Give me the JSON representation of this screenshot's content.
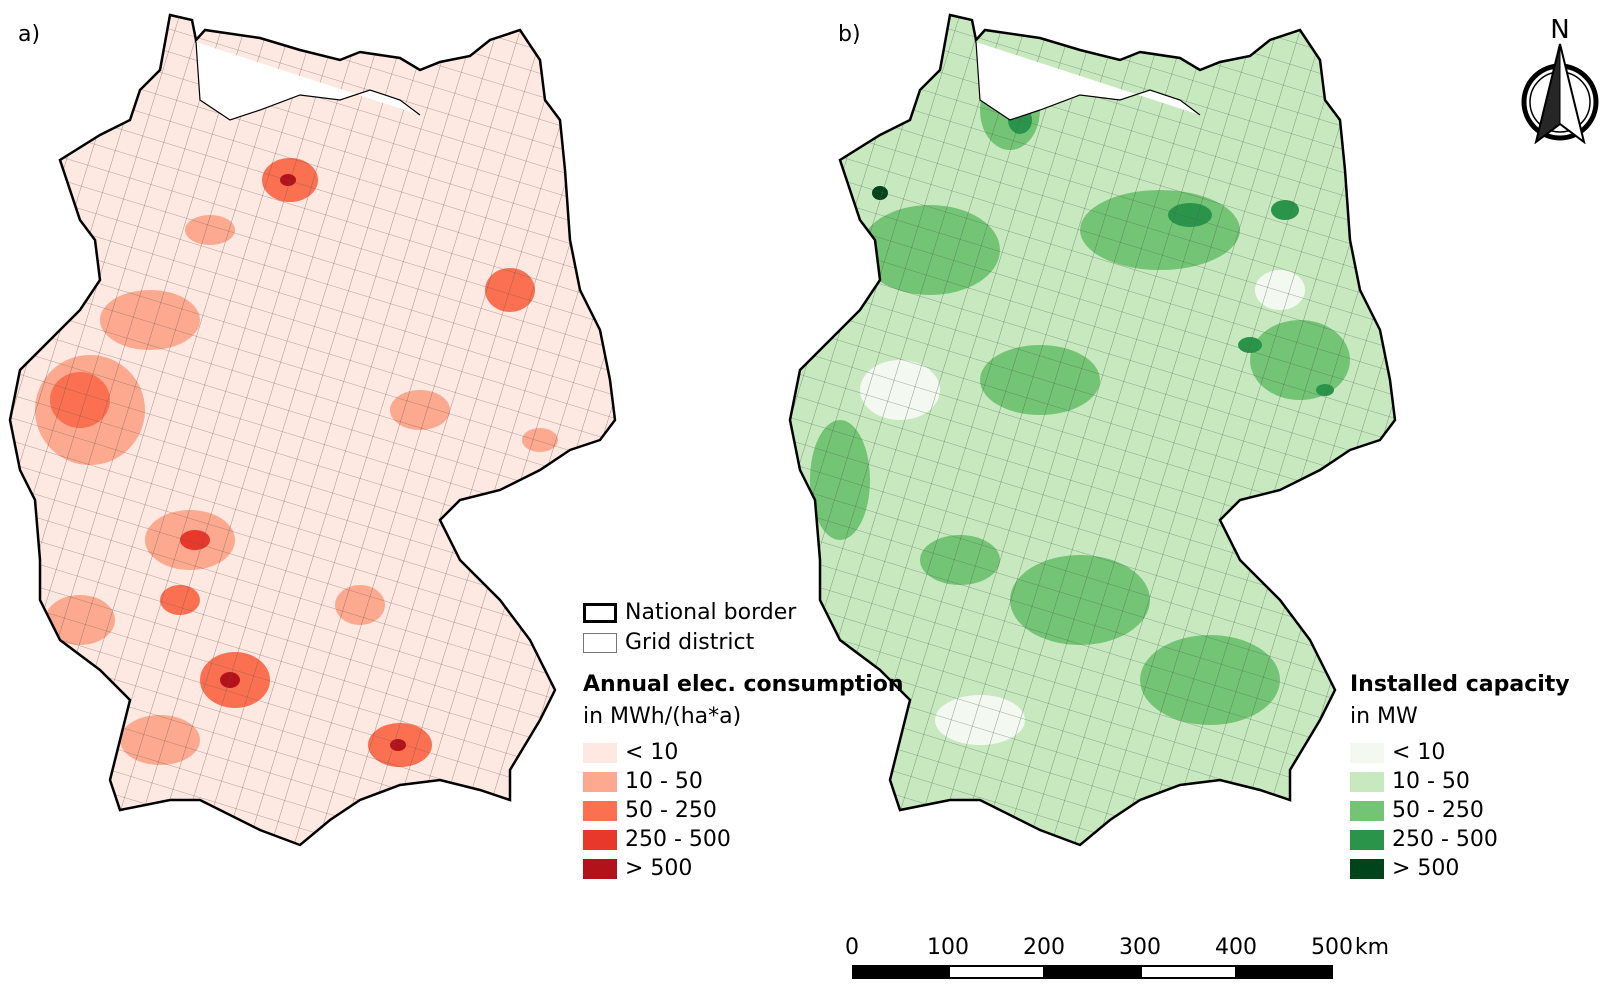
{
  "panels": [
    {
      "label": "a)"
    },
    {
      "label": "b)"
    }
  ],
  "common_legend": {
    "national_border": "National border",
    "grid_district": "Grid district"
  },
  "legend_a": {
    "title": "Annual elec. consumption",
    "unit": "in MWh/(ha*a)",
    "classes": [
      {
        "label": "< 10",
        "color": "#fde8e2"
      },
      {
        "label": "10 - 50",
        "color": "#fca98f"
      },
      {
        "label": "50 - 250",
        "color": "#fb7050"
      },
      {
        "label": "250 - 500",
        "color": "#e8372b"
      },
      {
        "label": "> 500",
        "color": "#b3121b"
      }
    ]
  },
  "legend_b": {
    "title": "Installed capacity",
    "unit": "in MW",
    "classes": [
      {
        "label": "< 10",
        "color": "#f3f9f1"
      },
      {
        "label": "10 - 50",
        "color": "#c8e9c0"
      },
      {
        "label": "50 - 250",
        "color": "#74c476"
      },
      {
        "label": "250 - 500",
        "color": "#2b944b"
      },
      {
        "label": "> 500",
        "color": "#00441b"
      }
    ]
  },
  "scale_bar": {
    "ticks": [
      "0",
      "100",
      "200",
      "300",
      "400",
      "500"
    ],
    "unit": "km"
  },
  "north_arrow": {
    "label": "N",
    "icon": "north-arrow-icon"
  }
}
